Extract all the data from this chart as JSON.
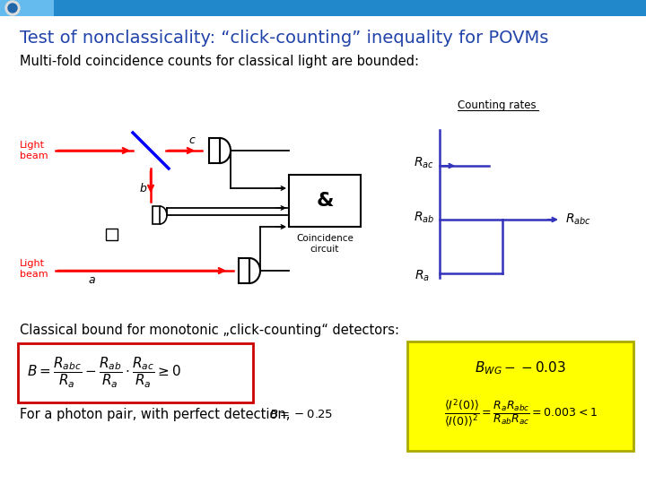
{
  "title": "Test of nonclassicality: “click-counting” inequality for POVMs",
  "title_color": "#2244aa",
  "subtitle": "Multi-fold coincidence counts for classical light are bounded:",
  "classical_bound_text": "Classical bound for monotonic „click-counting“ detectors:",
  "photon_pair_text": "For a photon pair, with perfect detection,",
  "photon_pair_italic": "B=-0.25",
  "counting_rates_label": "Counting rates",
  "header_bar_color": "#2288cc",
  "bg_color": "#ffffff",
  "yellow_box_color": "#ffff00",
  "red_line_color": "#cc0000",
  "diagram_color": "#000000",
  "step_color": "#3333bb"
}
